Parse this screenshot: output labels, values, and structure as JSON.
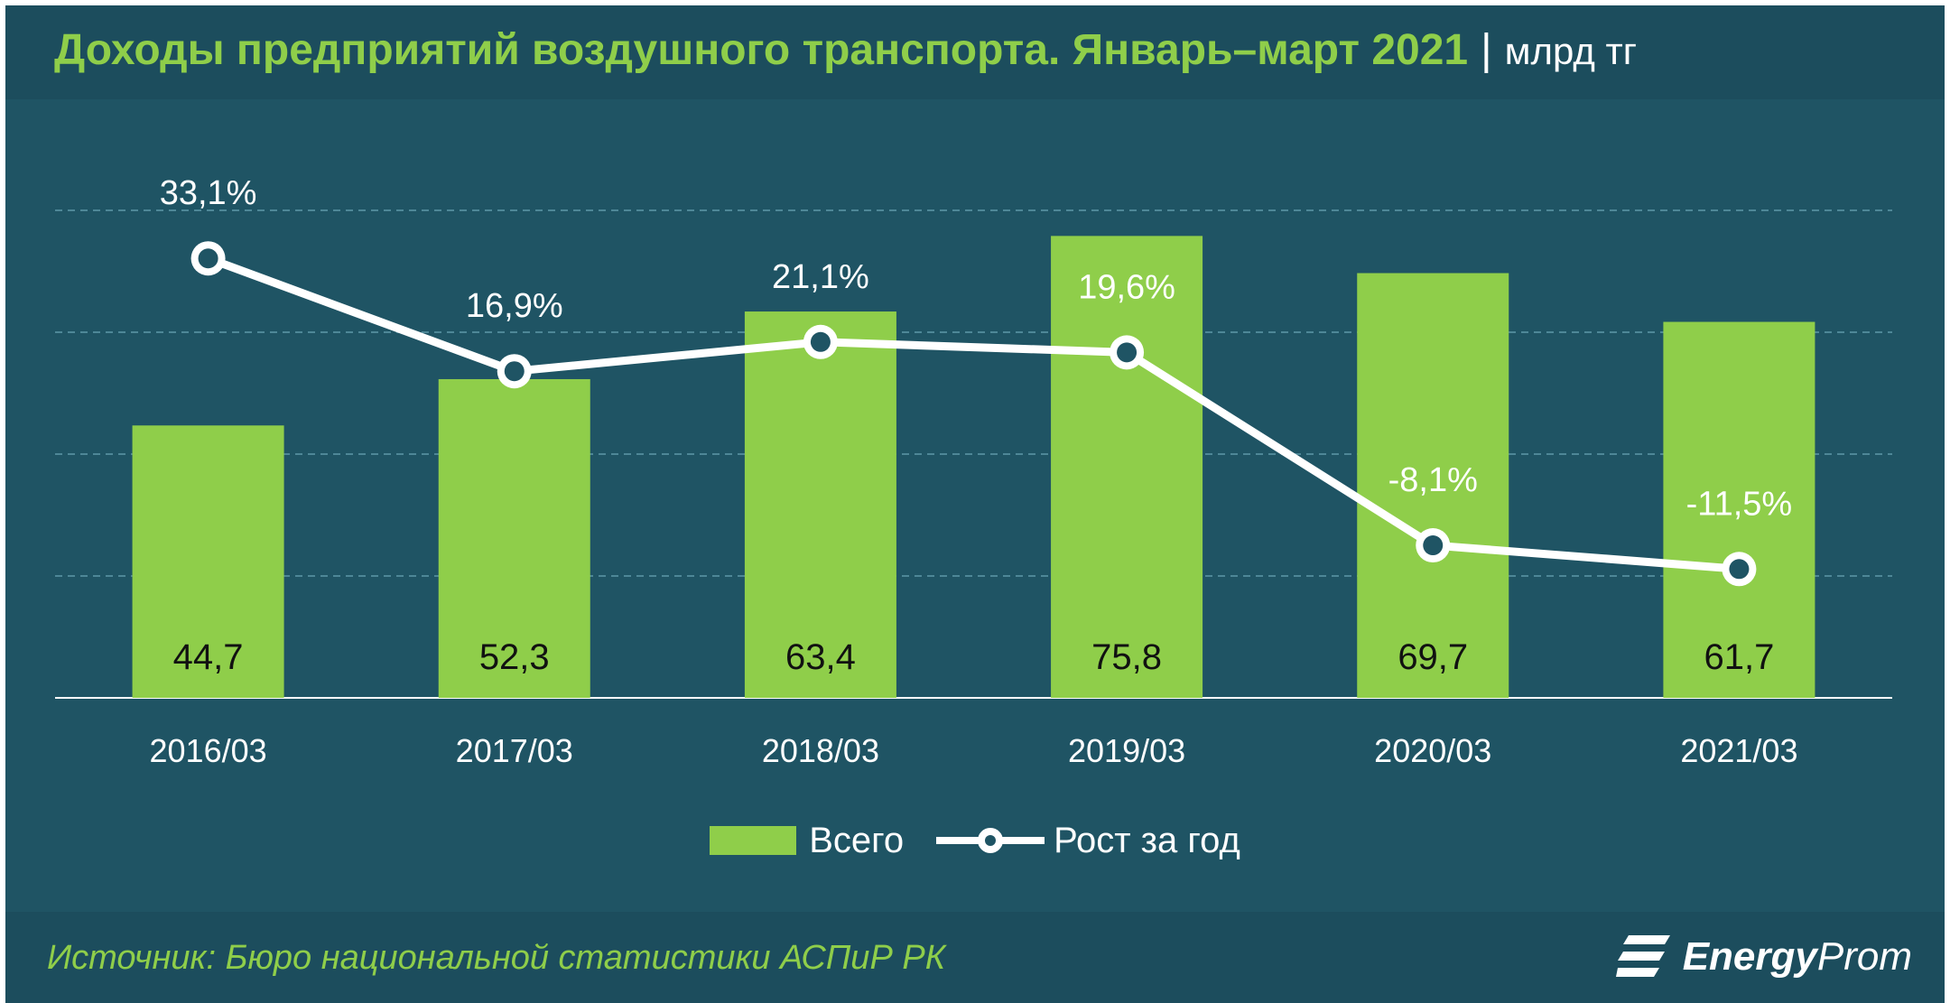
{
  "header": {
    "title": "Доходы предприятий воздушного транспорта. Январь–март 2021",
    "separator": "|",
    "unit": "млрд тг"
  },
  "footer": {
    "source": "Источник: Бюро национальной  статистики АСПиР РК",
    "logo_bold": "Energy",
    "logo_rest": "Prom",
    "logo_icon": "energyprom-logo-icon"
  },
  "colors": {
    "bar": "#8fce4a",
    "line": "#ffffff",
    "background": "#1f5464",
    "grid": "#4e8797",
    "title": "#8fce4a"
  },
  "chart_data": {
    "type": "bar",
    "categories": [
      "2016/03",
      "2017/03",
      "2018/03",
      "2019/03",
      "2020/03",
      "2021/03"
    ],
    "series": [
      {
        "name": "Всего",
        "type": "bar",
        "values": [
          44.7,
          52.3,
          63.4,
          75.8,
          69.7,
          61.7
        ],
        "labels": [
          "44,7",
          "52,3",
          "63,4",
          "75,8",
          "69,7",
          "61,7"
        ]
      },
      {
        "name": "Рост за год",
        "type": "line",
        "values": [
          33.1,
          16.9,
          21.1,
          19.6,
          -8.1,
          -11.5
        ],
        "labels": [
          "33,1%",
          "16,9%",
          "21,1%",
          "19,6%",
          "-8,1%",
          "-11,5%"
        ]
      }
    ],
    "ylim": [
      0,
      80
    ],
    "y2lim": [
      -30,
      40
    ],
    "grid": true,
    "legend": "bottom-center"
  }
}
